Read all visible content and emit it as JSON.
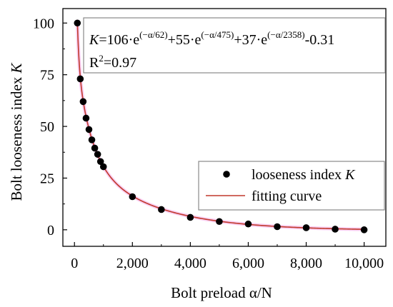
{
  "chart_data": {
    "type": "scatter",
    "title": "",
    "xlabel": "Bolt preload α/N",
    "ylabel": "Bolt looseness index K",
    "xlim": [
      -400,
      10750
    ],
    "ylim": [
      -8,
      107
    ],
    "x_ticks": [
      0,
      2000,
      4000,
      6000,
      8000,
      10000
    ],
    "x_tick_labels": [
      "0",
      "2,000",
      "4,000",
      "6,000",
      "8,000",
      "10,000"
    ],
    "y_ticks": [
      0,
      25,
      50,
      75,
      100
    ],
    "y_tick_labels": [
      "0",
      "25",
      "50",
      "75",
      "100"
    ],
    "grid": false,
    "legend_position": "center-right",
    "series": [
      {
        "name": "looseness index K",
        "kind": "scatter",
        "marker": "filled-circle",
        "color": "#000000",
        "x": [
          100,
          200,
          300,
          400,
          500,
          600,
          700,
          800,
          900,
          1000,
          2000,
          3000,
          4000,
          5000,
          6000,
          7000,
          8000,
          9000,
          10000
        ],
        "y": [
          100,
          73,
          62,
          54,
          48.5,
          43.5,
          39.5,
          36.5,
          33,
          30.5,
          16,
          9.8,
          6,
          4,
          2.8,
          1.5,
          1,
          0.3,
          0
        ]
      },
      {
        "name": "fitting curve",
        "kind": "line",
        "color": "#c0392b",
        "band_color": "#f4a6e8",
        "equation": {
          "a1": 106,
          "t1": 62,
          "a2": 55,
          "t2": 475,
          "a3": 37,
          "t3": 2358,
          "c": -0.31
        }
      }
    ],
    "annotation": {
      "equation_lead": "K",
      "equation_text": "=106·e",
      "exp1": "(−α/62)",
      "plus2": "+55·e",
      "exp2": "(−α/475)",
      "plus3": "+37·e",
      "exp3": "(−α/2358)",
      "tail": "-0.31",
      "r2_base": "R",
      "r2_sup": "2",
      "r2_value": "=0.97"
    }
  }
}
